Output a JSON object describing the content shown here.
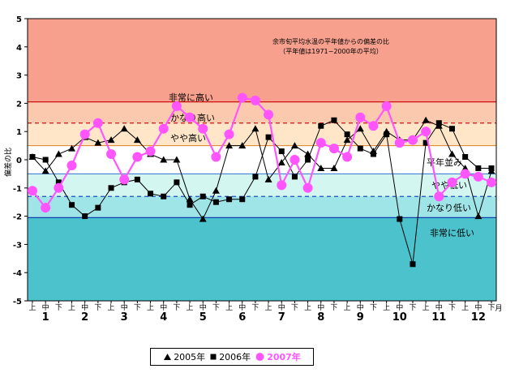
{
  "chart_data": {
    "type": "line",
    "title": "余市旬平均水温の平年値からの偏差の比",
    "subtitle": "（平年値は1971−2000年の平均）",
    "ylabel": "偏差の比",
    "ylim": [
      -5,
      5
    ],
    "yticks": [
      "5",
      "4",
      "3",
      "2",
      "1",
      "0",
      "-1",
      "-2",
      "-3",
      "-4",
      "-5"
    ],
    "dekads": [
      "上",
      "中",
      "下"
    ],
    "months": [
      "1",
      "2",
      "3",
      "4",
      "5",
      "6",
      "7",
      "8",
      "9",
      "10",
      "11",
      "12"
    ],
    "month_unit": "月",
    "bands": [
      {
        "name": "非常に高い",
        "from": 2.05,
        "to": 5,
        "color": "#f7a08e"
      },
      {
        "name": "かなり高い",
        "from": 1.3,
        "to": 2.05,
        "color": "#fbc9ad"
      },
      {
        "name": "やや高い",
        "from": 0.5,
        "to": 1.3,
        "color": "#ffe6c8"
      },
      {
        "name": "平年並み",
        "from": -0.5,
        "to": 0.5,
        "color": "#ffffff"
      },
      {
        "name": "やや低い",
        "from": -1.3,
        "to": -0.5,
        "color": "#d3f6f1"
      },
      {
        "name": "かなり低い",
        "from": -2.05,
        "to": -1.3,
        "color": "#9fe5e8"
      },
      {
        "name": "非常に低い",
        "from": -5,
        "to": -2.05,
        "color": "#4cc3cc"
      }
    ],
    "series": [
      {
        "name": "2005年",
        "marker": "triangle",
        "color": "#000000",
        "values": [
          0.1,
          -0.4,
          0.2,
          0.4,
          0.8,
          0.6,
          0.7,
          1.1,
          0.7,
          0.2,
          0.0,
          0.0,
          -1.4,
          -2.1,
          -1.1,
          0.5,
          0.5,
          1.1,
          -0.7,
          -0.1,
          0.5,
          0.2,
          -0.3,
          -0.3,
          0.7,
          1.1,
          0.3,
          1.0,
          0.7,
          0.7,
          1.4,
          1.2,
          0.2,
          -0.3,
          -2.0,
          -0.4
        ]
      },
      {
        "name": "2006年",
        "marker": "square",
        "color": "#000000",
        "values": [
          0.1,
          0.0,
          -0.8,
          -1.6,
          -2.0,
          -1.7,
          -1.0,
          -0.8,
          -0.7,
          -1.2,
          -1.3,
          -0.8,
          -1.6,
          -1.3,
          -1.5,
          -1.4,
          -1.4,
          -0.6,
          0.8,
          0.3,
          -0.6,
          0.0,
          1.2,
          1.4,
          0.9,
          0.4,
          0.2,
          0.9,
          -2.1,
          -3.7,
          0.6,
          1.3,
          1.1,
          0.1,
          -0.3,
          -0.3
        ]
      },
      {
        "name": "2007年",
        "marker": "circle",
        "color": "#ff55ff",
        "values": [
          -1.1,
          -1.7,
          -1.0,
          -0.2,
          0.9,
          1.3,
          0.2,
          -0.7,
          0.1,
          0.3,
          1.1,
          1.9,
          1.5,
          1.1,
          0.1,
          0.9,
          2.2,
          2.1,
          1.6,
          -0.9,
          0.0,
          -1.0,
          0.6,
          0.4,
          0.1,
          1.5,
          1.2,
          1.9,
          0.6,
          0.7,
          1.0,
          -1.3,
          -0.8,
          -0.5,
          -0.6,
          -0.8
        ]
      }
    ]
  }
}
